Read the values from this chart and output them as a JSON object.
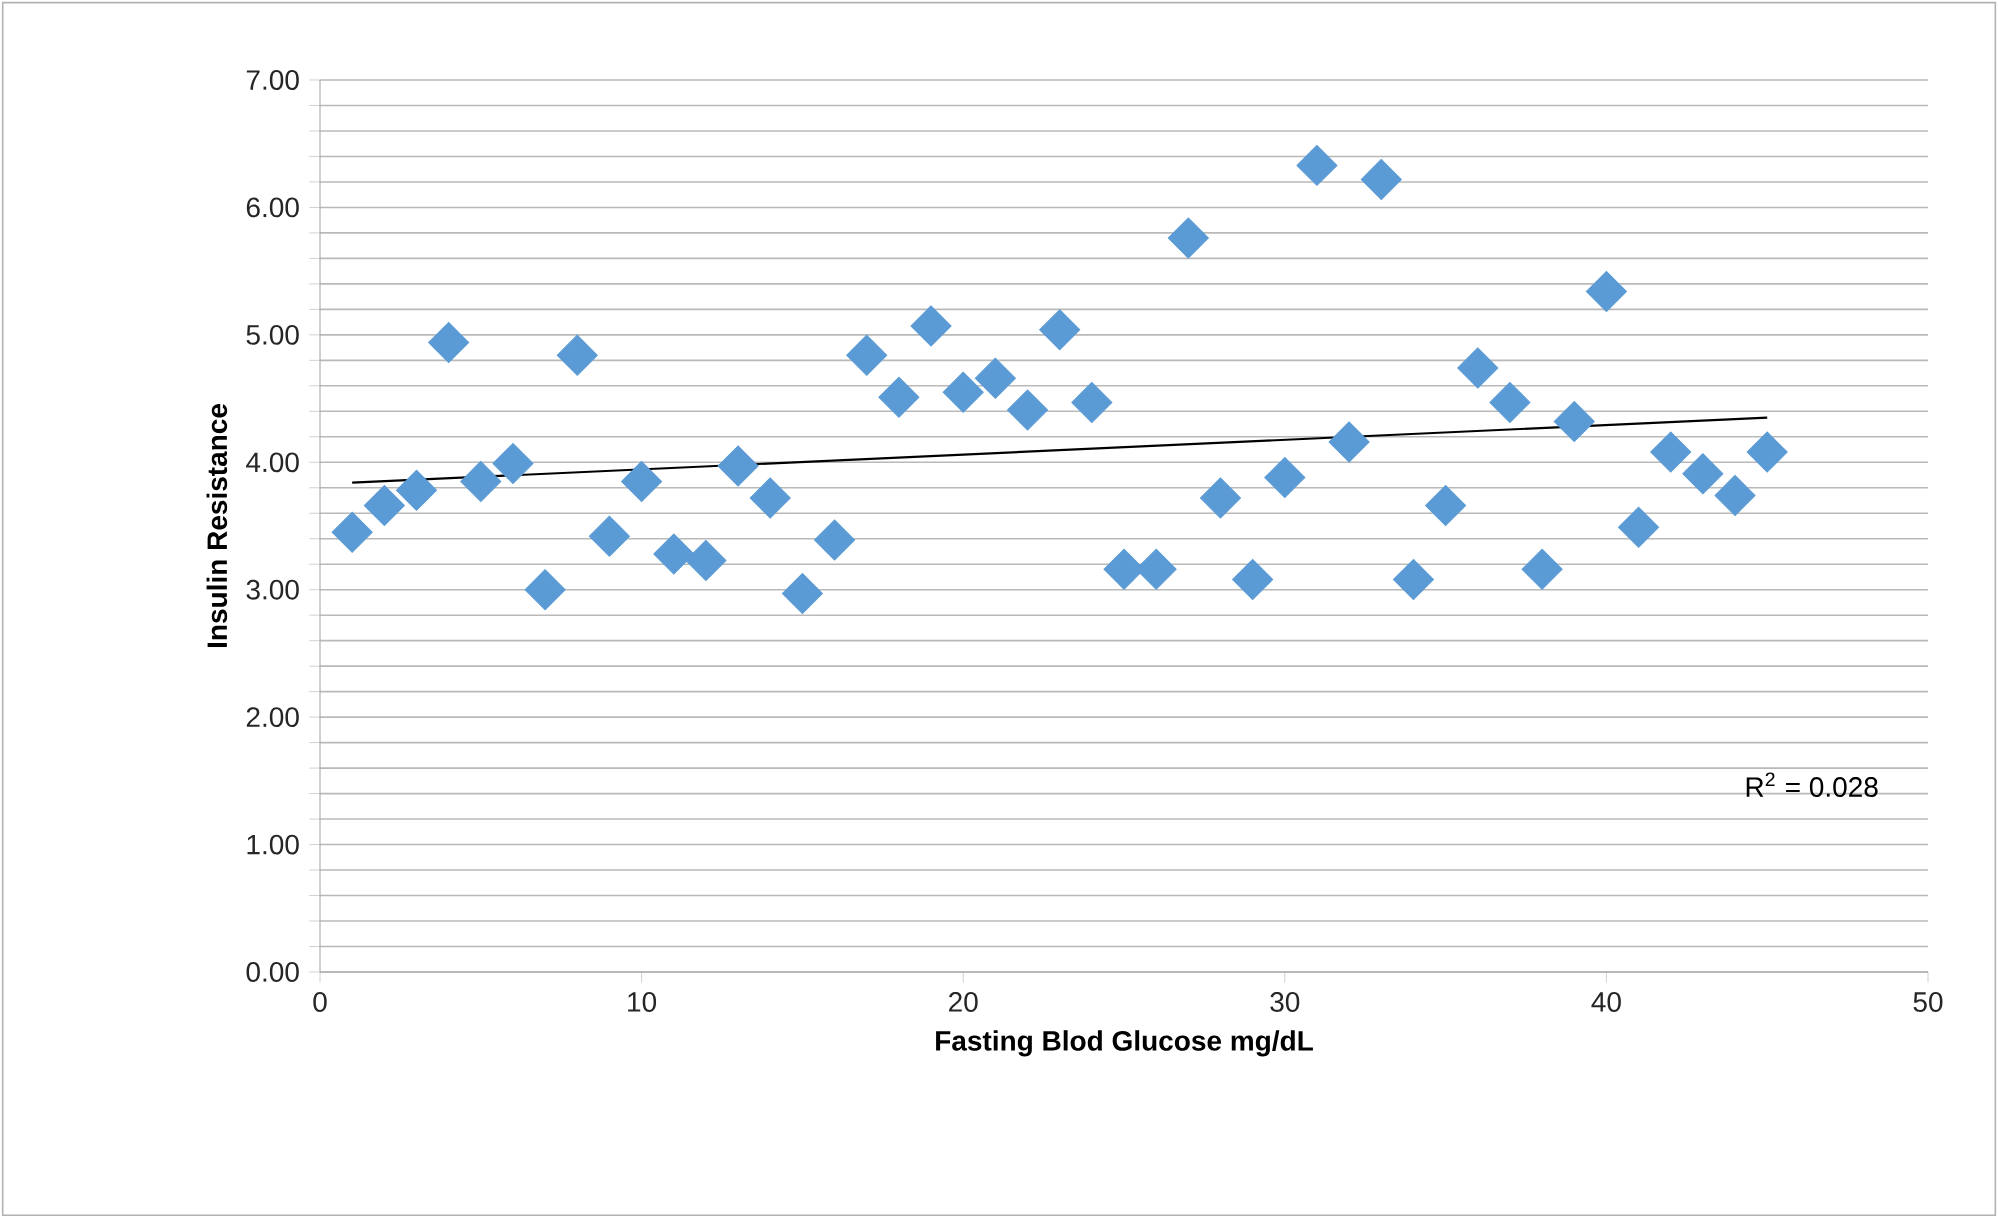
{
  "chart_data": {
    "type": "scatter",
    "xlabel": "Fasting Blod Glucose mg/dL",
    "ylabel": "Insulin Resistance",
    "annotations": [
      "R$^{2}$ = 0.028"
    ],
    "xlim": [
      0,
      50
    ],
    "xticks": [
      0,
      10,
      20,
      30,
      40,
      50
    ],
    "ylim": [
      0,
      7
    ],
    "yticks": [
      {
        "value": 0,
        "label": "0.00"
      },
      {
        "value": 0.2,
        "label": null
      },
      {
        "value": 0.4,
        "label": null
      },
      {
        "value": 0.6,
        "label": null
      },
      {
        "value": 0.8,
        "label": null
      },
      {
        "value": 1,
        "label": "1.00"
      },
      {
        "value": 1.2,
        "label": null
      },
      {
        "value": 1.4,
        "label": null
      },
      {
        "value": 1.6,
        "label": null
      },
      {
        "value": 1.8,
        "label": null
      },
      {
        "value": 2,
        "label": "2.00"
      },
      {
        "value": 2.2,
        "label": null
      },
      {
        "value": 2.4,
        "label": null
      },
      {
        "value": 2.6,
        "label": null
      },
      {
        "value": 2.8,
        "label": null
      },
      {
        "value": 3,
        "label": "3.00"
      },
      {
        "value": 3.2,
        "label": null
      },
      {
        "value": 3.4,
        "label": null
      },
      {
        "value": 3.6,
        "label": null
      },
      {
        "value": 3.8,
        "label": null
      },
      {
        "value": 4,
        "label": "4.00"
      },
      {
        "value": 4.2,
        "label": null
      },
      {
        "value": 4.4,
        "label": null
      },
      {
        "value": 4.6,
        "label": null
      },
      {
        "value": 4.8,
        "label": null
      },
      {
        "value": 5,
        "label": "5.00"
      },
      {
        "value": 5.2,
        "label": null
      },
      {
        "value": 5.4,
        "label": null
      },
      {
        "value": 5.6,
        "label": null
      },
      {
        "value": 5.8,
        "label": null
      },
      {
        "value": 6,
        "label": "6.00"
      },
      {
        "value": 6.2,
        "label": null
      },
      {
        "value": 6.4,
        "label": null
      },
      {
        "value": 6.6,
        "label": null
      },
      {
        "value": 6.8,
        "label": null
      },
      {
        "value": 7,
        "label": "7.00"
      }
    ],
    "grid": "y",
    "marker": "diamond",
    "series": [
      {
        "color": "#5b9bd5",
        "x": [
          1,
          2,
          3,
          4,
          5,
          6,
          7,
          8,
          9,
          10,
          11,
          12,
          13,
          14,
          15,
          16,
          17,
          18,
          19,
          20,
          21,
          22,
          23,
          24,
          25,
          26,
          27,
          28,
          29,
          30,
          31,
          32,
          33,
          34,
          35,
          36,
          37,
          38,
          39,
          40,
          41,
          42,
          43,
          44,
          45
        ],
        "values": [
          3.45,
          3.66,
          3.78,
          4.94,
          3.85,
          3.99,
          3.0,
          4.84,
          3.42,
          3.85,
          3.28,
          3.23,
          3.97,
          3.72,
          2.97,
          3.39,
          4.84,
          4.51,
          5.07,
          4.55,
          4.66,
          4.41,
          5.04,
          4.47,
          3.16,
          3.16,
          5.76,
          3.72,
          3.08,
          3.88,
          6.33,
          4.16,
          6.22,
          3.08,
          3.66,
          4.74,
          4.47,
          3.16,
          4.32,
          5.34,
          3.49,
          4.08,
          3.91,
          3.74,
          4.08
        ]
      },
      {
        "type": "line",
        "color": "#000000",
        "marker": "none",
        "x": [
          1,
          45
        ],
        "values": [
          3.84,
          4.35
        ]
      }
    ]
  }
}
